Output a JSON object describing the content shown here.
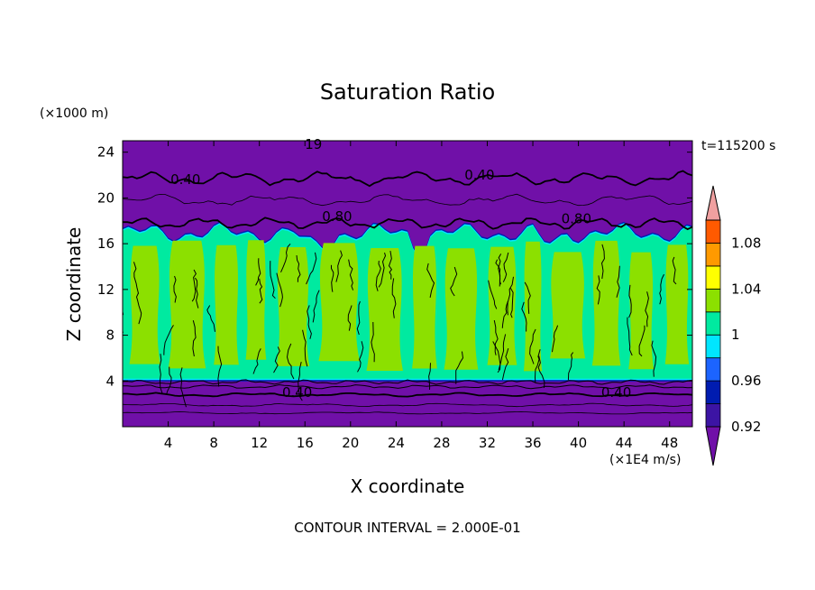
{
  "chart_data": {
    "type": "heatmap",
    "title": "Saturation Ratio",
    "xlabel": "X coordinate",
    "ylabel": "Z coordinate",
    "x_unit": "(×1E4 m/s)",
    "y_unit": "(×1000 m)",
    "time_label": "t=115200 s",
    "footer": "CONTOUR INTERVAL = 2.000E-01",
    "xlim": [
      0,
      50
    ],
    "ylim": [
      0,
      25
    ],
    "x_ticks": [
      4,
      8,
      12,
      16,
      20,
      24,
      28,
      32,
      36,
      40,
      44,
      48
    ],
    "y_ticks": [
      4,
      8,
      12,
      16,
      20,
      24
    ],
    "contour_labels": [
      {
        "text": "0.40",
        "x": 4.2,
        "y": 21.2
      },
      {
        "text": "0.40",
        "x": 30.0,
        "y": 21.6
      },
      {
        "text": "0.80",
        "x": 17.5,
        "y": 18.0
      },
      {
        "text": "0.80",
        "x": 38.5,
        "y": 17.8
      },
      {
        "text": "0.40",
        "x": 14.0,
        "y": 2.6
      },
      {
        "text": "0.40",
        "x": 42.0,
        "y": 2.6
      },
      {
        "text": "19",
        "x": 16.0,
        "y": 24.3
      }
    ],
    "colorbar": {
      "levels": [
        0.92,
        0.94,
        0.96,
        0.98,
        1.0,
        1.02,
        1.04,
        1.06,
        1.08,
        1.1
      ],
      "tick_labels": [
        "0.92",
        "0.96",
        "1",
        "1.04",
        "1.08"
      ],
      "colors": [
        "#7010a8",
        "#3c14a4",
        "#001cb0",
        "#1c64ff",
        "#00e6ff",
        "#00eaa0",
        "#8ce000",
        "#ffff00",
        "#ff9a00",
        "#ff5a00",
        "#ff2020",
        "#f0a0a0"
      ]
    }
  }
}
